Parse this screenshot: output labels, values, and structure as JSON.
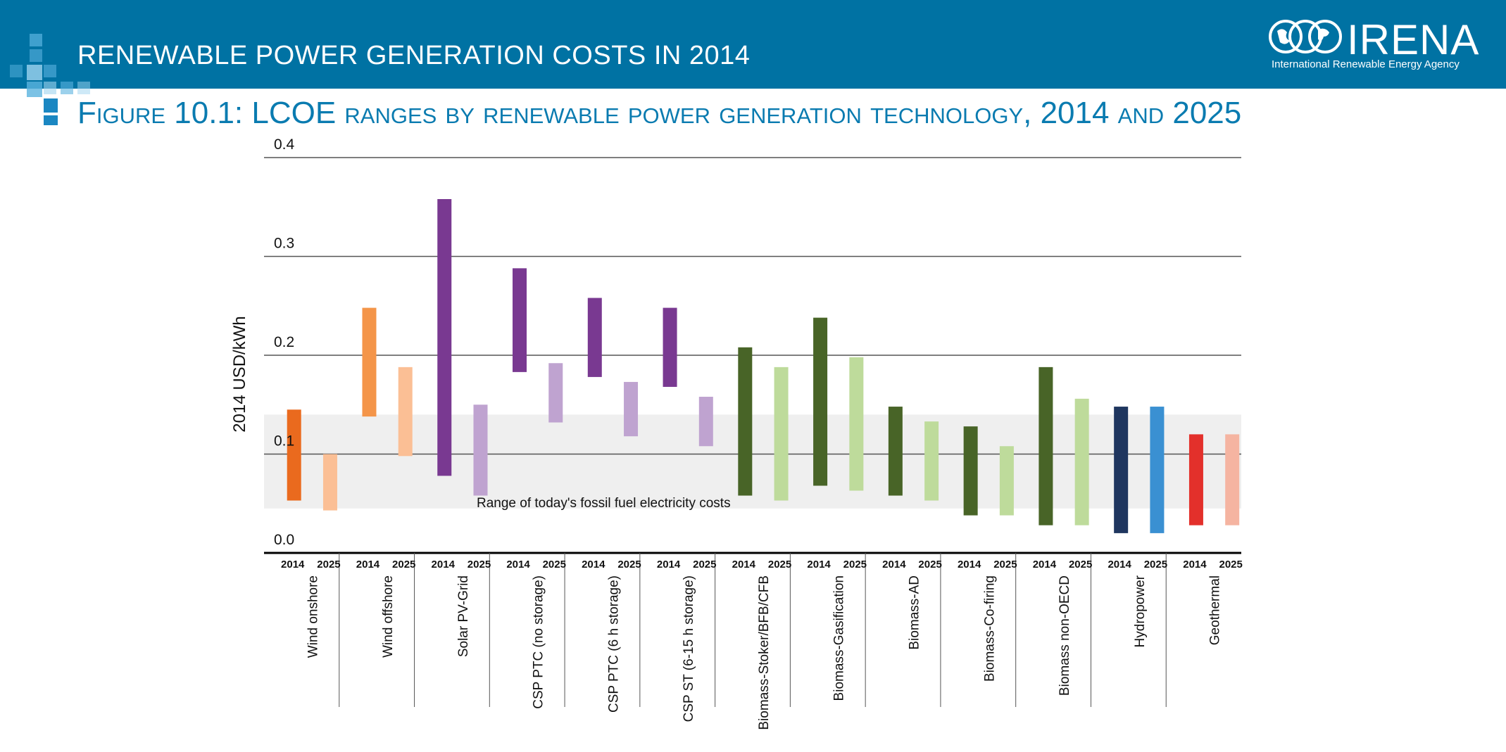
{
  "header": {
    "title": "RENEWABLE POWER GENERATION COSTS IN 2014",
    "logo_text": "IRENA",
    "logo_subtitle": "International Renewable Energy Agency"
  },
  "figure_title": "Figure 10.1: LCOE ranges by renewable power generation technology, 2014 and 2025",
  "chart_data": {
    "type": "bar",
    "subtype": "floating range",
    "ylabel": "2014 USD/kWh",
    "ylim": [
      0,
      0.4
    ],
    "yticks": [
      "0.0",
      "0.1",
      "0.2",
      "0.3",
      "0.4"
    ],
    "ytick_values": [
      0,
      0.1,
      0.2,
      0.3,
      0.4
    ],
    "grid": true,
    "fossil_band": {
      "label": "Range of today's fossil fuel electricity costs",
      "low": 0.045,
      "high": 0.14
    },
    "categories": [
      {
        "name": "Wind onshore",
        "bars": [
          {
            "year": "2014",
            "low": 0.053,
            "high": 0.145,
            "color": "#ea6a1e"
          },
          {
            "year": "2025",
            "low": 0.043,
            "high": 0.1,
            "color": "#fbbf95"
          }
        ]
      },
      {
        "name": "Wind offshore",
        "bars": [
          {
            "year": "2014",
            "low": 0.138,
            "high": 0.248,
            "color": "#f49549"
          },
          {
            "year": "2025",
            "low": 0.098,
            "high": 0.188,
            "color": "#fbbf95"
          }
        ]
      },
      {
        "name": "Solar PV-Grid",
        "bars": [
          {
            "year": "2014",
            "low": 0.078,
            "high": 0.358,
            "color": "#793991"
          },
          {
            "year": "2025",
            "low": 0.058,
            "high": 0.15,
            "color": "#bfa3d0"
          }
        ]
      },
      {
        "name": "CSP PTC (no storage)",
        "bars": [
          {
            "year": "2014",
            "low": 0.183,
            "high": 0.288,
            "color": "#793991"
          },
          {
            "year": "2025",
            "low": 0.132,
            "high": 0.192,
            "color": "#bfa3d0"
          }
        ]
      },
      {
        "name": "CSP PTC (6 h storage)",
        "bars": [
          {
            "year": "2014",
            "low": 0.178,
            "high": 0.258,
            "color": "#793991"
          },
          {
            "year": "2025",
            "low": 0.118,
            "high": 0.173,
            "color": "#bfa3d0"
          }
        ]
      },
      {
        "name": "CSP ST (6-15 h storage)",
        "bars": [
          {
            "year": "2014",
            "low": 0.168,
            "high": 0.248,
            "color": "#793991"
          },
          {
            "year": "2025",
            "low": 0.108,
            "high": 0.158,
            "color": "#bfa3d0"
          }
        ]
      },
      {
        "name": "Biomass-Stoker/BFB/CFB",
        "bars": [
          {
            "year": "2014",
            "low": 0.058,
            "high": 0.208,
            "color": "#486427"
          },
          {
            "year": "2025",
            "low": 0.053,
            "high": 0.188,
            "color": "#bedb9b"
          }
        ]
      },
      {
        "name": "Biomass-Gasification",
        "bars": [
          {
            "year": "2014",
            "low": 0.068,
            "high": 0.238,
            "color": "#486427"
          },
          {
            "year": "2025",
            "low": 0.063,
            "high": 0.198,
            "color": "#bedb9b"
          }
        ]
      },
      {
        "name": "Biomass-AD",
        "bars": [
          {
            "year": "2014",
            "low": 0.058,
            "high": 0.148,
            "color": "#486427"
          },
          {
            "year": "2025",
            "low": 0.053,
            "high": 0.133,
            "color": "#bedb9b"
          }
        ]
      },
      {
        "name": "Biomass-Co-firing",
        "bars": [
          {
            "year": "2014",
            "low": 0.038,
            "high": 0.128,
            "color": "#486427"
          },
          {
            "year": "2025",
            "low": 0.038,
            "high": 0.108,
            "color": "#bedb9b"
          }
        ]
      },
      {
        "name": "Biomass non-OECD",
        "bars": [
          {
            "year": "2014",
            "low": 0.028,
            "high": 0.188,
            "color": "#486427"
          },
          {
            "year": "2025",
            "low": 0.028,
            "high": 0.156,
            "color": "#bedb9b"
          }
        ]
      },
      {
        "name": "Hydropower",
        "bars": [
          {
            "year": "2014",
            "low": 0.02,
            "high": 0.148,
            "color": "#1f365f"
          },
          {
            "year": "2025",
            "low": 0.02,
            "high": 0.148,
            "color": "#3a90d2"
          }
        ]
      },
      {
        "name": "Geothermal",
        "bars": [
          {
            "year": "2014",
            "low": 0.028,
            "high": 0.12,
            "color": "#e3302b"
          },
          {
            "year": "2025",
            "low": 0.028,
            "high": 0.12,
            "color": "#f5b4a1"
          }
        ]
      }
    ]
  }
}
